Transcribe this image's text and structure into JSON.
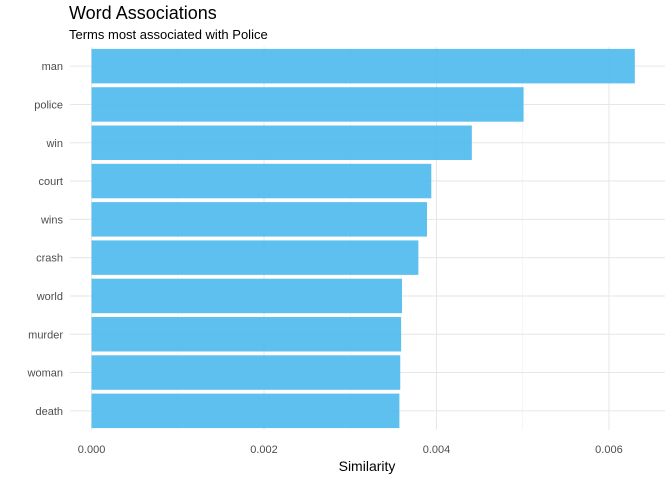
{
  "chart_data": {
    "type": "bar",
    "orientation": "horizontal",
    "title": "Word Associations",
    "subtitle": "Terms most associated with Police",
    "xlabel": "Similarity",
    "ylabel": "",
    "categories": [
      "man",
      "police",
      "win",
      "court",
      "wins",
      "crash",
      "world",
      "murder",
      "woman",
      "death"
    ],
    "values": [
      0.0063,
      0.00501,
      0.00441,
      0.00394,
      0.00389,
      0.00379,
      0.0036,
      0.00359,
      0.00358,
      0.00357
    ],
    "xlim": [
      -0.00025,
      0.00665
    ],
    "x_ticks": [
      "0.000",
      "0.002",
      "0.004",
      "0.006"
    ],
    "x_tick_values": [
      0,
      0.002,
      0.004,
      0.006
    ],
    "grid": true,
    "bar_color": "#4bb9ec"
  }
}
